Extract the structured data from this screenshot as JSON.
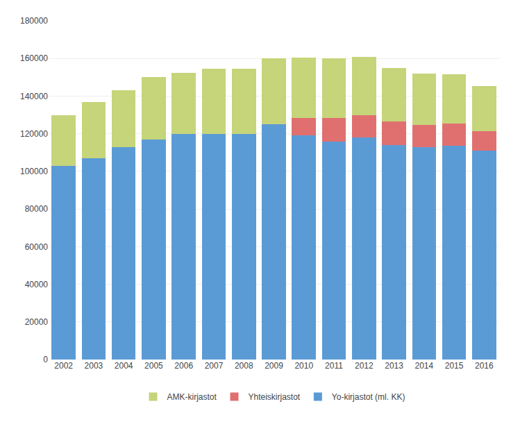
{
  "chart_data": {
    "type": "bar",
    "categories": [
      "2002",
      "2003",
      "2004",
      "2005",
      "2006",
      "2007",
      "2008",
      "2009",
      "2010",
      "2011",
      "2012",
      "2013",
      "2014",
      "2015",
      "2016"
    ],
    "series": [
      {
        "name": "Yo-kirjastot (ml. KK)",
        "color": "#5B9BD5",
        "values": [
          103000,
          107000,
          113000,
          117000,
          120000,
          120000,
          120000,
          125000,
          119000,
          116000,
          118000,
          114000,
          113000,
          113500,
          111000
        ]
      },
      {
        "name": "Yhteiskirjastot",
        "color": "#E07070",
        "values": [
          0,
          0,
          0,
          0,
          0,
          0,
          0,
          0,
          9500,
          12500,
          12000,
          12500,
          11500,
          12000,
          10500
        ]
      },
      {
        "name": "AMK-kirjastot",
        "color": "#C6D47A",
        "values": [
          27000,
          30000,
          30000,
          33000,
          32500,
          34500,
          34500,
          35000,
          32000,
          31500,
          31000,
          28500,
          27500,
          26000,
          24000
        ]
      }
    ],
    "stacked": true,
    "ylim": [
      0,
      180000
    ],
    "yticks": [
      0,
      20000,
      40000,
      60000,
      80000,
      100000,
      120000,
      140000,
      160000,
      180000
    ],
    "grid": true,
    "legend": "bottom"
  }
}
